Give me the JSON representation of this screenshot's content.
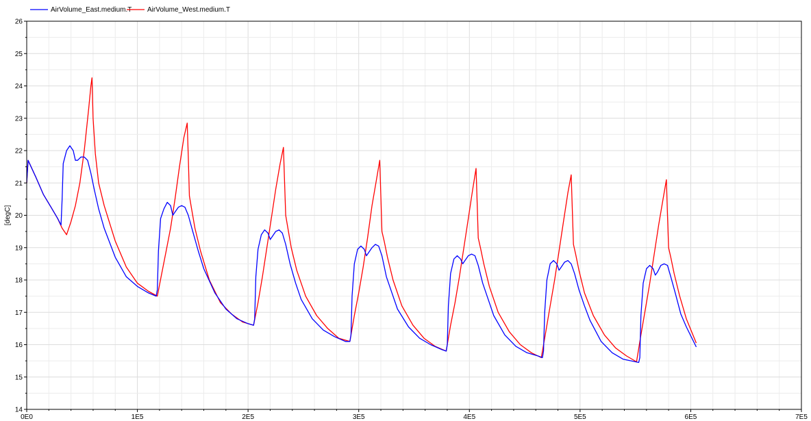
{
  "chart_data": {
    "type": "line",
    "title": "",
    "xlabel": "",
    "ylabel": "[degC]",
    "xlim": [
      0,
      700000
    ],
    "ylim": [
      14,
      26
    ],
    "grid": true,
    "legend_position": "top-left",
    "x_ticks": [
      {
        "value": 0,
        "label": "0E0"
      },
      {
        "value": 100000,
        "label": "1E5"
      },
      {
        "value": 200000,
        "label": "2E5"
      },
      {
        "value": 300000,
        "label": "3E5"
      },
      {
        "value": 400000,
        "label": "4E5"
      },
      {
        "value": 500000,
        "label": "5E5"
      },
      {
        "value": 600000,
        "label": "6E5"
      },
      {
        "value": 700000,
        "label": "7E5"
      }
    ],
    "y_ticks": [
      14,
      15,
      16,
      17,
      18,
      19,
      20,
      21,
      22,
      23,
      24,
      25,
      26
    ],
    "series": [
      {
        "name": "AirVolume_East.medium.T",
        "color": "#0000ff",
        "x": [
          0,
          1250,
          8000,
          15000,
          22000,
          28000,
          31000,
          32000,
          33000,
          36000,
          39000,
          42000,
          44000,
          46000,
          49000,
          52000,
          55000,
          58000,
          61000,
          65000,
          70000,
          80000,
          90000,
          100000,
          110000,
          117000,
          118000,
          119000,
          121000,
          124000,
          127000,
          130000,
          132000,
          134000,
          137000,
          140000,
          143000,
          146000,
          150000,
          155000,
          160000,
          170000,
          180000,
          190000,
          200000,
          205000,
          206000,
          207000,
          209000,
          212000,
          215000,
          218000,
          220000,
          222000,
          225000,
          228000,
          231000,
          234000,
          238000,
          243000,
          248000,
          258000,
          268000,
          278000,
          288000,
          292000,
          293000,
          294000,
          296000,
          299000,
          302000,
          305000,
          307000,
          309000,
          312000,
          315000,
          318000,
          321000,
          325000,
          330000,
          335000,
          345000,
          355000,
          365000,
          375000,
          379000,
          380000,
          381000,
          383000,
          386000,
          389000,
          392000,
          394000,
          396000,
          399000,
          402000,
          405000,
          408000,
          412000,
          417000,
          422000,
          432000,
          442000,
          452000,
          462000,
          466000,
          467000,
          468000,
          470000,
          473000,
          476000,
          479000,
          481000,
          483000,
          486000,
          489000,
          492000,
          495000,
          499000,
          504000,
          509000,
          519000,
          529000,
          539000,
          549000,
          553000,
          554000,
          555000,
          557000,
          560000,
          563000,
          566000,
          568000,
          570000,
          573000,
          576000,
          579000,
          582000,
          586000,
          591000,
          596000,
          605000
        ],
        "y": [
          21.0,
          21.7,
          21.2,
          20.65,
          20.25,
          19.9,
          19.7,
          20.5,
          21.6,
          22.0,
          22.15,
          22.0,
          21.7,
          21.7,
          21.8,
          21.8,
          21.7,
          21.3,
          20.8,
          20.2,
          19.6,
          18.7,
          18.1,
          17.8,
          17.6,
          17.5,
          17.7,
          18.9,
          19.9,
          20.2,
          20.4,
          20.3,
          20.0,
          20.1,
          20.25,
          20.3,
          20.25,
          20.0,
          19.5,
          18.9,
          18.35,
          17.6,
          17.1,
          16.8,
          16.65,
          16.6,
          16.8,
          18.1,
          18.95,
          19.4,
          19.55,
          19.45,
          19.25,
          19.35,
          19.5,
          19.55,
          19.45,
          19.1,
          18.5,
          17.9,
          17.4,
          16.8,
          16.45,
          16.25,
          16.1,
          16.1,
          16.3,
          17.5,
          18.5,
          18.95,
          19.05,
          18.95,
          18.75,
          18.85,
          19.0,
          19.1,
          19.05,
          18.75,
          18.1,
          17.6,
          17.1,
          16.55,
          16.2,
          16.0,
          15.85,
          15.8,
          16.0,
          17.2,
          18.2,
          18.65,
          18.75,
          18.65,
          18.5,
          18.6,
          18.75,
          18.8,
          18.75,
          18.45,
          17.9,
          17.4,
          16.9,
          16.3,
          15.95,
          15.75,
          15.65,
          15.6,
          15.8,
          17.0,
          18.0,
          18.5,
          18.6,
          18.5,
          18.3,
          18.4,
          18.55,
          18.6,
          18.5,
          18.2,
          17.7,
          17.2,
          16.75,
          16.1,
          15.75,
          15.55,
          15.48,
          15.45,
          15.6,
          16.9,
          17.9,
          18.35,
          18.45,
          18.35,
          18.15,
          18.25,
          18.45,
          18.5,
          18.45,
          18.1,
          17.6,
          16.95,
          16.55,
          15.93
        ]
      },
      {
        "name": "AirVolume_West.medium.T",
        "color": "#ff0000",
        "x": [
          0,
          1250,
          8000,
          15000,
          22000,
          28000,
          32000,
          36000,
          40000,
          44000,
          48000,
          52000,
          56000,
          58000,
          59000,
          60000,
          62000,
          65000,
          70000,
          80000,
          90000,
          100000,
          110000,
          118000,
          122000,
          126000,
          130000,
          134000,
          138000,
          142000,
          145000,
          146000,
          147000,
          149000,
          152000,
          157000,
          165000,
          175000,
          185000,
          195000,
          205000,
          209000,
          213000,
          217000,
          221000,
          225000,
          229000,
          232000,
          233000,
          234000,
          236000,
          239000,
          244000,
          252000,
          262000,
          272000,
          282000,
          292000,
          296000,
          300000,
          304000,
          308000,
          312000,
          316000,
          319000,
          320000,
          321000,
          323000,
          326000,
          331000,
          339000,
          349000,
          359000,
          369000,
          379000,
          383000,
          387000,
          391000,
          395000,
          399000,
          403000,
          406000,
          407000,
          408000,
          410000,
          413000,
          418000,
          426000,
          436000,
          446000,
          456000,
          465000,
          469000,
          473000,
          477000,
          481000,
          485000,
          489000,
          492000,
          493000,
          494000,
          496000,
          499000,
          504000,
          512000,
          522000,
          532000,
          542000,
          551000,
          555000,
          559000,
          563000,
          567000,
          571000,
          575000,
          578000,
          579000,
          580000,
          582000,
          585000,
          590000,
          596000,
          605000
        ],
        "y": [
          21.0,
          21.7,
          21.2,
          20.65,
          20.25,
          19.9,
          19.6,
          19.4,
          19.8,
          20.3,
          21.0,
          22.0,
          23.3,
          24.0,
          24.25,
          23.0,
          21.9,
          21.0,
          20.3,
          19.2,
          18.4,
          17.9,
          17.65,
          17.5,
          18.2,
          18.9,
          19.6,
          20.5,
          21.5,
          22.4,
          22.85,
          21.8,
          20.6,
          20.2,
          19.6,
          18.9,
          18.0,
          17.3,
          16.95,
          16.7,
          16.6,
          17.3,
          18.1,
          19.0,
          19.9,
          20.8,
          21.6,
          22.1,
          21.0,
          20.0,
          19.6,
          19.0,
          18.3,
          17.5,
          16.9,
          16.5,
          16.2,
          16.1,
          16.9,
          17.6,
          18.4,
          19.3,
          20.3,
          21.1,
          21.7,
          20.6,
          19.5,
          19.2,
          18.7,
          18.0,
          17.2,
          16.6,
          16.2,
          15.95,
          15.8,
          16.6,
          17.3,
          18.1,
          19.0,
          19.9,
          20.8,
          21.45,
          20.4,
          19.3,
          19.0,
          18.5,
          17.8,
          17.0,
          16.4,
          16.0,
          15.75,
          15.6,
          16.4,
          17.2,
          18.0,
          18.9,
          19.8,
          20.7,
          21.25,
          20.2,
          19.1,
          18.8,
          18.3,
          17.6,
          16.9,
          16.3,
          15.9,
          15.65,
          15.47,
          16.3,
          17.1,
          17.9,
          18.8,
          19.7,
          20.5,
          21.1,
          20.0,
          19.0,
          18.7,
          18.2,
          17.5,
          16.8,
          16.05
        ]
      }
    ]
  }
}
